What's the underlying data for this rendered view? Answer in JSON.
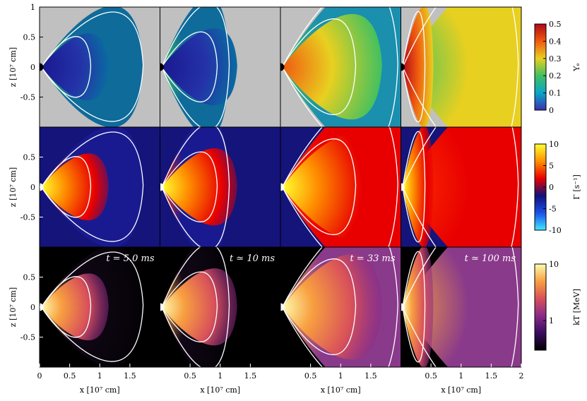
{
  "chart_data": {
    "type": "heatmap",
    "xlabel": "x [10⁷ cm]",
    "ylabel": "z [10⁷ cm]",
    "xlim": [
      0,
      2
    ],
    "ylim": [
      -1,
      1
    ],
    "columns": [
      {
        "xticks": [
          0,
          0.5,
          1,
          1.5
        ],
        "xtick_labels": [
          "0",
          "0.5",
          "1",
          "1.5"
        ]
      },
      {
        "xticks": [
          0.5,
          1,
          1.5
        ],
        "xtick_labels": [
          "0.5",
          "1",
          "1.5"
        ]
      },
      {
        "xticks": [
          0.5,
          1,
          1.5
        ],
        "xtick_labels": [
          "0.5",
          "1",
          "1.5"
        ]
      },
      {
        "xticks": [
          0.5,
          1,
          1.5,
          2
        ],
        "xtick_labels": [
          "0.5",
          "1",
          "1.5",
          "2"
        ]
      }
    ],
    "rows": [
      {
        "quantity": "Ye",
        "yticks": [
          1,
          0.5,
          0,
          -0.5
        ],
        "ytick_labels": [
          "1",
          "0.5",
          "0",
          "-0.5"
        ],
        "colorbar": {
          "label": "Yₑ",
          "range": [
            0,
            0.5
          ],
          "ticks": [
            0,
            0.1,
            0.2,
            0.3,
            0.4,
            0.5
          ],
          "tick_labels": [
            "0",
            "0.1",
            "0.2",
            "0.3",
            "0.4",
            "0.5"
          ],
          "colors": [
            "#3b2fb0",
            "#0aa6c8",
            "#41c060",
            "#e8d020",
            "#f05a10",
            "#b00818"
          ],
          "scale": "linear"
        },
        "background_color": "#c0c0c0"
      },
      {
        "quantity": "Gamma",
        "yticks": [
          0.5,
          0,
          -0.5
        ],
        "ytick_labels": [
          "0.5",
          "0",
          "-0.5"
        ],
        "colorbar": {
          "label": "Γ [s⁻¹]",
          "range": [
            -10,
            10
          ],
          "ticks": [
            -10,
            -5,
            0,
            5,
            10
          ],
          "tick_labels": [
            "-10",
            "-5",
            "0",
            "5",
            "10"
          ],
          "colors": [
            "#40e8ff",
            "#1a50e8",
            "#101078",
            "#e80000",
            "#ff9000",
            "#ffff30"
          ],
          "scale": "linear"
        },
        "background_color": "#14147a"
      },
      {
        "quantity": "kT",
        "yticks": [
          0.5,
          0,
          -0.5
        ],
        "ytick_labels": [
          "0.5",
          "0",
          "-0.5"
        ],
        "colorbar": {
          "label": "kT [MeV]",
          "range": [
            0.3,
            10
          ],
          "ticks": [
            1,
            10
          ],
          "tick_labels": [
            "1",
            "10"
          ],
          "colors": [
            "#000000",
            "#3a0c60",
            "#8a2a88",
            "#d8505a",
            "#f8a040",
            "#fcfcb0"
          ],
          "scale": "log"
        },
        "background_color": "#000000"
      }
    ],
    "time_labels": [
      "t = 5.0 ms",
      "t ≃ 10 ms",
      "t = 33 ms",
      "t ≃ 100 ms"
    ]
  }
}
